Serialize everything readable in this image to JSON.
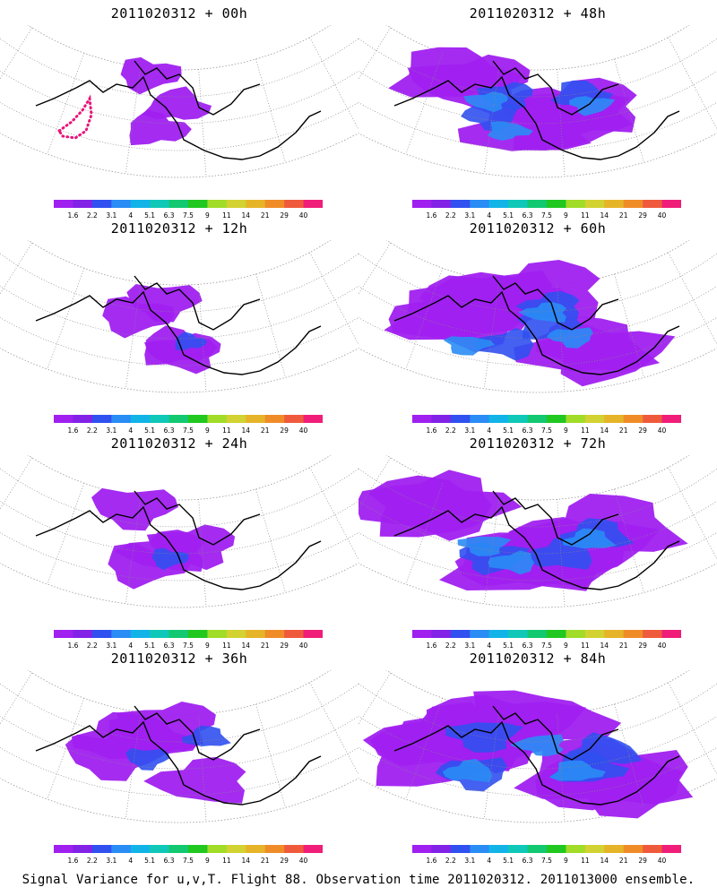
{
  "footer": "Signal Variance for u,v,T. Flight 88. Observation time 2011020312. 2011013000 ensemble.",
  "legend": {
    "labels": [
      "1.6",
      "2.2",
      "3.1",
      "4",
      "5.1",
      "6.3",
      "7.5",
      "9",
      "11",
      "14",
      "21",
      "29",
      "40"
    ],
    "colors": [
      "#a020f0",
      "#8222e6",
      "#3050f0",
      "#2a8cf5",
      "#12b4e8",
      "#10c8b8",
      "#12c870",
      "#20c820",
      "#a0dc28",
      "#d2d232",
      "#e6b428",
      "#f08c28",
      "#f05a3c",
      "#f01e78"
    ]
  },
  "panels": [
    {
      "title": "2011020312 + 00h",
      "spread": 0.15
    },
    {
      "title": "2011020312 + 12h",
      "spread": 0.25
    },
    {
      "title": "2011020312 + 24h",
      "spread": 0.35
    },
    {
      "title": "2011020312 + 36h",
      "spread": 0.45
    },
    {
      "title": "2011020312 + 48h",
      "spread": 0.65
    },
    {
      "title": "2011020312 + 60h",
      "spread": 0.75
    },
    {
      "title": "2011020312 + 72h",
      "spread": 0.85
    },
    {
      "title": "2011020312 + 84h",
      "spread": 0.92
    }
  ]
}
